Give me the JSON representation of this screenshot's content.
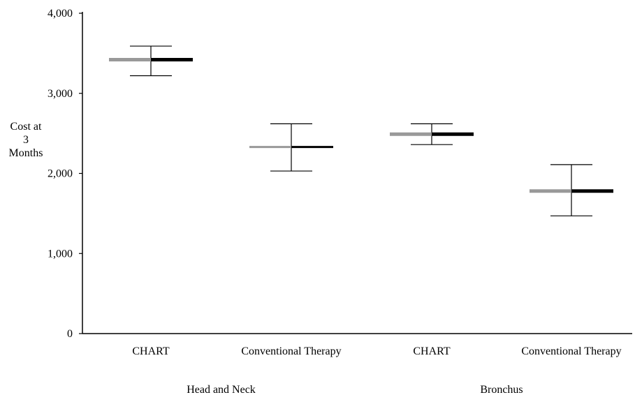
{
  "chart_data": {
    "type": "range",
    "ylabel_lines": [
      "Cost at",
      "3",
      "Months"
    ],
    "ylim": [
      0,
      4000
    ],
    "yticks": [
      {
        "value": 0,
        "label": "0"
      },
      {
        "value": 1000,
        "label": "1,000"
      },
      {
        "value": 2000,
        "label": "2,000"
      },
      {
        "value": 3000,
        "label": "3,000"
      },
      {
        "value": 4000,
        "label": "4,000"
      }
    ],
    "groups": [
      "Head and Neck",
      "Bronchus"
    ],
    "categories": [
      {
        "label": "CHART",
        "group": "Head and Neck",
        "mean": 3420,
        "lower": 3220,
        "upper": 3590,
        "left_color": "#999999",
        "right_color": "#000000"
      },
      {
        "label": "Conventional Therapy",
        "group": "Head and Neck",
        "mean": 2330,
        "lower": 2030,
        "upper": 2620,
        "left_color": "#999999",
        "right_color": "#000000"
      },
      {
        "label": "CHART",
        "group": "Bronchus",
        "mean": 2490,
        "lower": 2360,
        "upper": 2620,
        "left_color": "#999999",
        "right_color": "#000000"
      },
      {
        "label": "Conventional Therapy",
        "group": "Bronchus",
        "mean": 1780,
        "lower": 1470,
        "upper": 2110,
        "left_color": "#999999",
        "right_color": "#000000"
      }
    ]
  }
}
